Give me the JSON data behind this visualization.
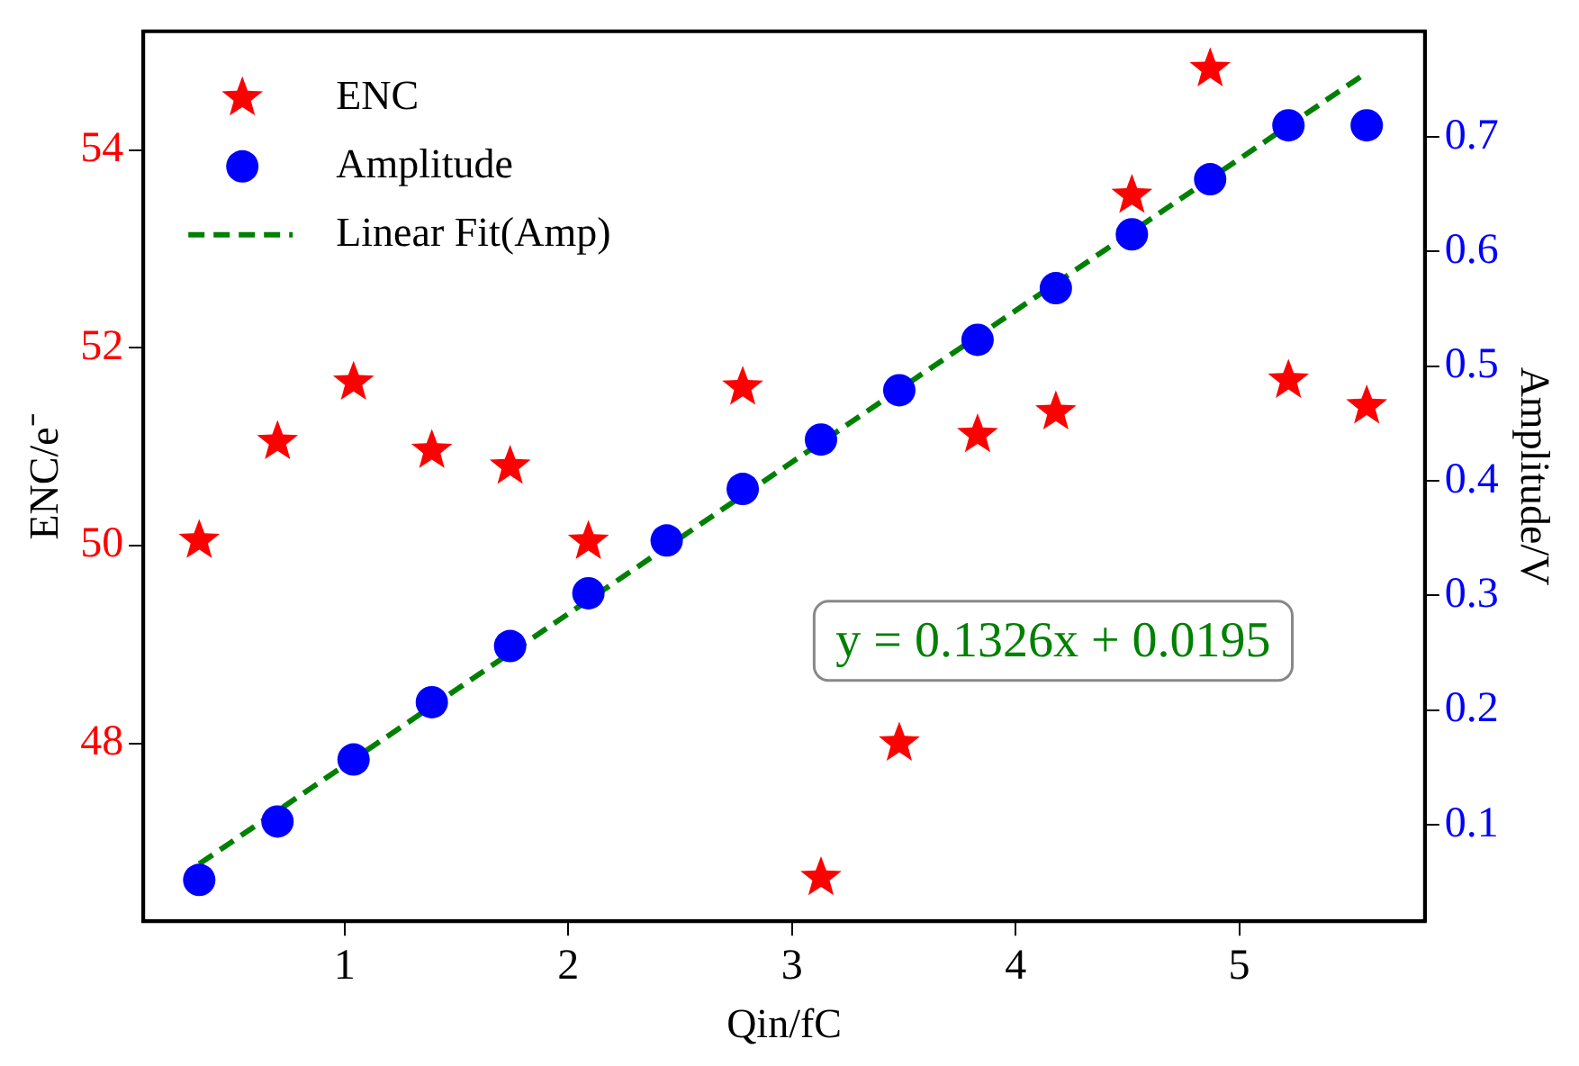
{
  "chart_data": {
    "type": "scatter",
    "xlabel": "Qin/fC",
    "ylabel": "ENC/e⁻",
    "y2label": "Amplitude/V",
    "x": [
      0.35,
      0.7,
      1.04,
      1.39,
      1.74,
      2.09,
      2.44,
      2.78,
      3.13,
      3.48,
      3.83,
      4.18,
      4.52,
      4.87,
      5.22,
      5.57
    ],
    "series": [
      {
        "name": "ENC",
        "color": "#ff0000",
        "marker": "star",
        "values": [
          50.05,
          51.05,
          51.65,
          50.96,
          50.8,
          50.04,
          null,
          51.6,
          46.64,
          48.0,
          51.12,
          51.35,
          53.54,
          54.82,
          51.67,
          51.41
        ]
      },
      {
        "name": "Amplitude",
        "color": "#0000ff",
        "marker": "circle",
        "axis": "y2",
        "values": [
          0.052,
          0.103,
          0.157,
          0.207,
          0.256,
          0.302,
          0.348,
          0.393,
          0.436,
          0.479,
          0.523,
          0.568,
          0.615,
          0.663,
          0.71,
          0.71
        ]
      },
      {
        "name": "Linear Fit(Amp)",
        "type": "line",
        "color": "#008000",
        "marker": "none",
        "line_style": "dashed",
        "axis": "y2",
        "x": [
          0.35,
          5.57
        ],
        "values": [
          0.066,
          0.756
        ]
      }
    ],
    "xlim": [
      0.1,
      5.83
    ],
    "xticks": [
      1,
      2,
      3,
      4,
      5
    ],
    "ylim": [
      46.2,
      55.2
    ],
    "yticks": [
      48,
      50,
      52,
      54
    ],
    "y2lim": [
      0.016,
      0.792
    ],
    "y2ticks": [
      0.1,
      0.2,
      0.3,
      0.4,
      0.5,
      0.6,
      0.7
    ],
    "annotations": [
      "y = 0.1326x + 0.0195"
    ],
    "legend": "top left",
    "grid": false
  }
}
